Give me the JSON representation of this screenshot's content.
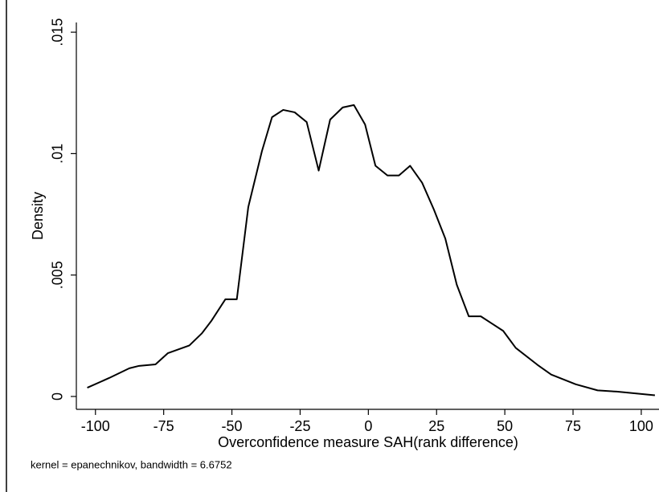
{
  "chart_data": {
    "type": "line",
    "xlabel": "Overconfidence measure SAH(rank difference)",
    "ylabel": "Density",
    "note": "kernel = epanechnikov, bandwidth = 6.6752",
    "x": [
      -103,
      -95,
      -87.6,
      -84,
      -78,
      -73.5,
      -65.6,
      -61,
      -57.6,
      -52.4,
      -48.2,
      -44,
      -39,
      -35.3,
      -31.2,
      -27,
      -22.6,
      -18.2,
      -14,
      -9.4,
      -5.3,
      -1.2,
      2.6,
      7,
      11.2,
      15.3,
      19.7,
      24,
      28.2,
      32.4,
      36.8,
      41.2,
      45.3,
      49.4,
      54,
      62,
      67,
      76,
      84,
      91,
      105
    ],
    "series": [
      {
        "color": "#000000",
        "values": [
          0.00036,
          0.00076,
          0.00116,
          0.00126,
          0.00132,
          0.00178,
          0.0021,
          0.0026,
          0.0031,
          0.004,
          0.004,
          0.0078,
          0.0101,
          0.0115,
          0.0118,
          0.0117,
          0.0113,
          0.0093,
          0.0114,
          0.0119,
          0.012,
          0.0112,
          0.0095,
          0.0091,
          0.0091,
          0.0095,
          0.0088,
          0.0077,
          0.0065,
          0.0046,
          0.0033,
          0.0033,
          0.003,
          0.0027,
          0.002,
          0.0013,
          0.0009,
          0.0005,
          0.00025,
          0.0002,
          5e-05
        ]
      }
    ],
    "xlim": [
      -107,
      106.5
    ],
    "ylim": [
      -0.00053,
      0.0154
    ],
    "xticks": [
      -100,
      -75,
      -50,
      -25,
      0,
      25,
      50,
      75,
      100
    ],
    "yticks": [
      0,
      {
        "value": 0.005,
        "label": ".005"
      },
      {
        "value": 0.01,
        "label": ".01"
      },
      {
        "value": 0.015,
        "label": ".015"
      }
    ]
  }
}
